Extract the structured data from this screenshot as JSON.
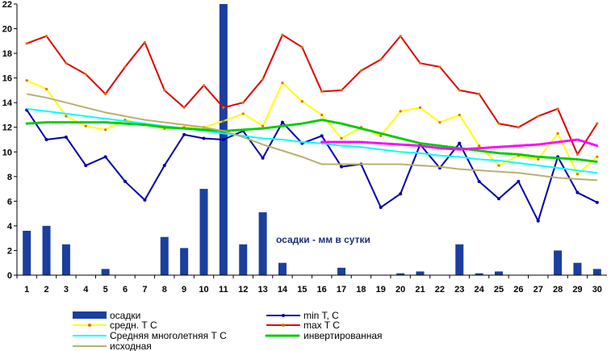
{
  "chart_data": {
    "type": "line",
    "x": [
      1,
      2,
      3,
      4,
      5,
      6,
      7,
      8,
      9,
      10,
      11,
      12,
      13,
      14,
      15,
      16,
      17,
      18,
      19,
      20,
      21,
      22,
      23,
      24,
      25,
      26,
      27,
      28,
      29,
      30
    ],
    "ylim": [
      0,
      22
    ],
    "yticks": [
      0,
      2,
      4,
      6,
      8,
      10,
      12,
      14,
      16,
      18,
      20,
      22
    ],
    "grid": false,
    "legend_position": "bottom",
    "annotation": "осадки - мм в сутки",
    "series": [
      {
        "name": "осадки",
        "type": "bar",
        "color": "#1a3f9e",
        "values": [
          3.6,
          4.0,
          2.5,
          0,
          0.5,
          0,
          0,
          3.1,
          2.2,
          7.0,
          22.0,
          2.5,
          5.1,
          1.0,
          0,
          0,
          0.6,
          0,
          0,
          0.15,
          0.3,
          0,
          2.5,
          0.15,
          0.3,
          0,
          0,
          2.0,
          1.0,
          0.5
        ]
      },
      {
        "name": "min T, C",
        "type": "line",
        "color": "#0000aa",
        "marker": true,
        "values": [
          13.4,
          11.0,
          11.2,
          8.9,
          9.6,
          7.6,
          6.1,
          8.9,
          11.4,
          11.1,
          11.0,
          11.7,
          9.5,
          12.4,
          10.7,
          11.3,
          8.8,
          9.0,
          5.5,
          6.6,
          10.6,
          8.7,
          10.7,
          7.6,
          6.2,
          7.6,
          4.4,
          9.6,
          6.7,
          5.9
        ]
      },
      {
        "name": "средн. Т С",
        "type": "line",
        "color": "#ffff00",
        "marker": true,
        "values": [
          15.8,
          15.1,
          12.9,
          12.1,
          11.8,
          12.6,
          12.2,
          11.9,
          12.0,
          12.0,
          12.5,
          13.1,
          12.1,
          15.6,
          14.1,
          13.0,
          11.1,
          12.0,
          11.3,
          13.3,
          13.6,
          12.4,
          13.0,
          10.5,
          8.9,
          9.7,
          9.4,
          11.5,
          8.2,
          9.6
        ]
      },
      {
        "name": "max T C",
        "type": "line",
        "color": "#e00000",
        "marker": true,
        "values": [
          18.8,
          19.4,
          17.2,
          16.3,
          14.7,
          16.9,
          18.9,
          15.0,
          13.6,
          15.4,
          13.6,
          14.0,
          15.9,
          19.5,
          18.5,
          14.9,
          15.0,
          16.6,
          17.5,
          19.4,
          17.2,
          16.9,
          15.0,
          14.7,
          12.3,
          12.0,
          12.9,
          13.5,
          9.8,
          12.3
        ]
      },
      {
        "name": "Средняя многолетняя Т С",
        "type": "line",
        "color": "#00ffff",
        "values": [
          13.5,
          13.3,
          13.1,
          12.9,
          12.7,
          12.5,
          12.3,
          12.1,
          11.9,
          11.7,
          11.5,
          11.3,
          11.1,
          11.0,
          10.8,
          10.7,
          10.5,
          10.4,
          10.2,
          10.0,
          9.9,
          9.7,
          9.6,
          9.4,
          9.3,
          9.1,
          8.9,
          8.7,
          8.5,
          8.3
        ]
      },
      {
        "name": "инвертированная",
        "type": "line",
        "color": "#00cc00",
        "style": "dotted",
        "values": [
          12.3,
          12.4,
          12.4,
          12.4,
          12.4,
          12.3,
          12.2,
          12.0,
          11.9,
          11.8,
          11.7,
          11.8,
          11.9,
          12.1,
          12.3,
          12.6,
          12.3,
          11.9,
          11.5,
          11.1,
          10.7,
          10.5,
          10.3,
          10.1,
          9.9,
          9.8,
          9.6,
          9.5,
          9.4,
          9.2
        ]
      },
      {
        "name": "исходная",
        "type": "line",
        "color": "#b8b070",
        "values": [
          14.7,
          14.4,
          14.0,
          13.6,
          13.2,
          12.9,
          12.6,
          12.4,
          12.2,
          12.0,
          11.7,
          11.2,
          10.6,
          10.1,
          9.6,
          9.0,
          9.0,
          9.0,
          9.0,
          9.0,
          8.9,
          8.8,
          8.6,
          8.5,
          8.4,
          8.3,
          8.1,
          7.9,
          7.8,
          7.7
        ]
      },
      {
        "name": "",
        "type": "line",
        "color": "#ff00ff",
        "style": "dotted",
        "values": [
          null,
          null,
          null,
          null,
          null,
          null,
          null,
          null,
          null,
          null,
          null,
          null,
          null,
          null,
          null,
          10.8,
          10.8,
          10.8,
          10.7,
          10.6,
          10.5,
          10.3,
          10.2,
          10.3,
          10.4,
          10.5,
          10.6,
          10.8,
          11.0,
          10.5
        ]
      }
    ]
  }
}
